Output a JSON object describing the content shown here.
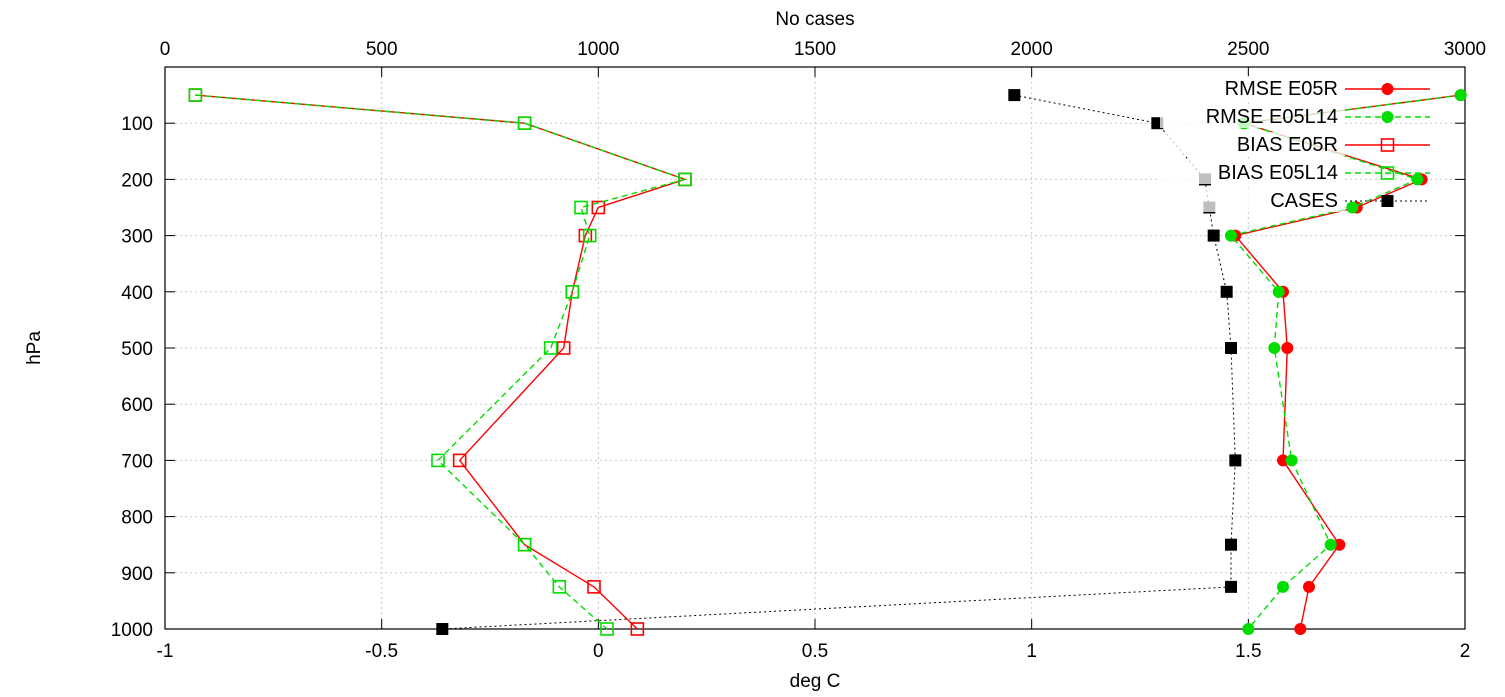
{
  "chart_data": {
    "type": "line",
    "xlabel": "deg C",
    "x2label": "No cases",
    "ylabel": "hPa",
    "xlim": [
      -1,
      2
    ],
    "x2lim": [
      0,
      3000
    ],
    "ylim": [
      0,
      1000
    ],
    "y_inverted": true,
    "xticks": [
      -1,
      -0.5,
      0,
      0.5,
      1,
      1.5,
      2
    ],
    "x2ticks": [
      0,
      500,
      1000,
      1500,
      2000,
      2500,
      3000
    ],
    "yticks": [
      100,
      200,
      300,
      400,
      500,
      600,
      700,
      800,
      900,
      1000
    ],
    "grid": true,
    "legend_position": "top-right",
    "levels": [
      50,
      100,
      200,
      250,
      300,
      400,
      500,
      700,
      850,
      925,
      1000
    ],
    "series": [
      {
        "name": "RMSE E05R",
        "axis": "x",
        "color": "#ff0000",
        "dash": "solid",
        "marker": "filled-circle",
        "values": [
          1.99,
          1.49,
          1.9,
          1.75,
          1.47,
          1.58,
          1.59,
          1.58,
          1.71,
          1.64,
          1.62
        ]
      },
      {
        "name": "RMSE E05L14",
        "axis": "x",
        "color": "#00dd00",
        "dash": "dashed",
        "marker": "filled-circle",
        "values": [
          1.99,
          1.49,
          1.89,
          1.74,
          1.46,
          1.57,
          1.56,
          1.6,
          1.69,
          1.58,
          1.5
        ]
      },
      {
        "name": "BIAS E05R",
        "axis": "x",
        "color": "#ff0000",
        "dash": "solid",
        "marker": "open-square",
        "values": [
          -0.93,
          -0.17,
          0.2,
          0.0,
          -0.03,
          -0.06,
          -0.08,
          -0.32,
          -0.17,
          -0.01,
          0.09
        ]
      },
      {
        "name": "BIAS E05L14",
        "axis": "x",
        "color": "#00dd00",
        "dash": "dashed",
        "marker": "open-square",
        "values": [
          -0.93,
          -0.17,
          0.2,
          -0.04,
          -0.02,
          -0.06,
          -0.11,
          -0.37,
          -0.17,
          -0.09,
          0.02
        ]
      },
      {
        "name": "CASES",
        "axis": "x2",
        "color": "#000000",
        "dash": "dotted",
        "marker": "filled-square",
        "values": [
          1960,
          2290,
          2400,
          2410,
          2420,
          2450,
          2460,
          2470,
          2460,
          2460,
          640
        ]
      }
    ]
  }
}
